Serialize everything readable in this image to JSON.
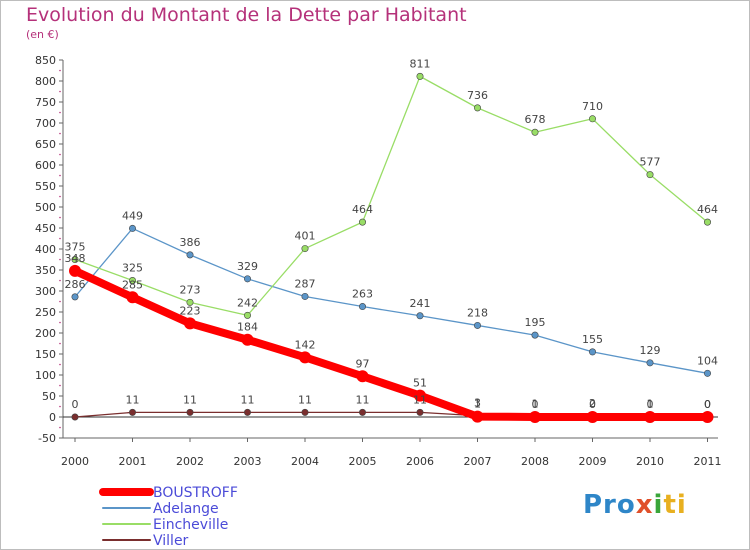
{
  "chart_data": {
    "type": "line",
    "title": "Evolution du Montant de la Dette par Habitant",
    "subtitle": "(en €)",
    "x": [
      "2000",
      "2001",
      "2002",
      "2003",
      "2004",
      "2005",
      "2006",
      "2007",
      "2008",
      "2009",
      "2010",
      "2011"
    ],
    "ylim": [
      -50,
      850
    ],
    "yticks": [
      -50,
      0,
      50,
      100,
      150,
      200,
      250,
      300,
      350,
      400,
      450,
      500,
      550,
      600,
      650,
      700,
      750,
      800,
      850
    ],
    "grid": false,
    "legend_position": "bottom-left",
    "series": [
      {
        "name": "BOUSTROFF",
        "color": "#ff0000",
        "values": [
          348,
          285,
          223,
          184,
          142,
          97,
          51,
          1,
          0,
          0,
          0,
          0
        ],
        "labels": [
          "348",
          "285",
          "223",
          "184",
          "142",
          "97",
          "51",
          "1",
          "0",
          "0",
          "0",
          "0"
        ]
      },
      {
        "name": "Adelange",
        "color": "#5b95c8",
        "values": [
          286,
          449,
          386,
          329,
          287,
          263,
          241,
          218,
          195,
          155,
          129,
          104
        ],
        "labels": [
          "286",
          "449",
          "386",
          "329",
          "287",
          "263",
          "241",
          "218",
          "195",
          "155",
          "129",
          "104"
        ]
      },
      {
        "name": "Eincheville",
        "color": "#99dd66",
        "values": [
          375,
          325,
          273,
          242,
          401,
          464,
          811,
          736,
          678,
          710,
          577,
          464
        ],
        "labels": [
          "375",
          "325",
          "273",
          "242",
          "401",
          "464",
          "811",
          "736",
          "678",
          "710",
          "577",
          "464"
        ]
      },
      {
        "name": "Viller",
        "color": "#7a2e2e",
        "values": [
          0,
          11,
          11,
          11,
          11,
          11,
          11,
          3,
          1,
          2,
          1,
          0
        ],
        "labels": [
          "0",
          "11",
          "11",
          "11",
          "11",
          "11",
          "11",
          "3",
          "1",
          "2",
          "1",
          "0"
        ]
      }
    ]
  },
  "logo": {
    "p1": "Pro",
    "p2": "x",
    "p3": "i",
    "p4": "ti"
  }
}
